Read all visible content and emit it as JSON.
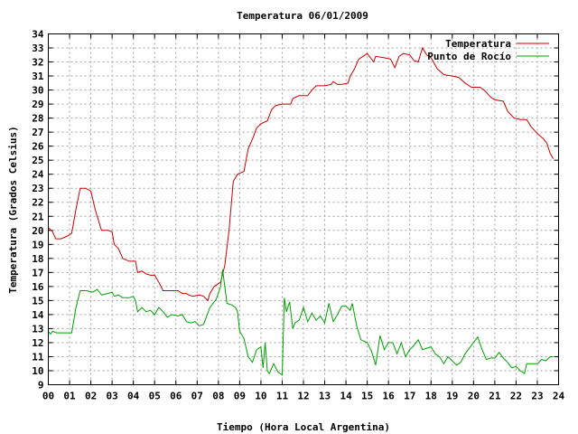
{
  "chart_data": {
    "type": "line",
    "title": "Temperatura 06/01/2009",
    "xlabel": "Tiempo (Hora Local Argentina)",
    "ylabel": "Temperatura (Grados Celsius)",
    "xlim": [
      0,
      24
    ],
    "ylim": [
      9,
      34
    ],
    "grid": true,
    "legend_position": "top-right",
    "x_tick_labels": [
      "00",
      "01",
      "02",
      "03",
      "04",
      "05",
      "06",
      "07",
      "08",
      "09",
      "10",
      "11",
      "12",
      "13",
      "14",
      "15",
      "16",
      "17",
      "18",
      "19",
      "20",
      "21",
      "22",
      "23",
      "24"
    ],
    "y_tick_labels": [
      "9",
      "10",
      "11",
      "12",
      "13",
      "14",
      "15",
      "16",
      "17",
      "18",
      "19",
      "20",
      "21",
      "22",
      "23",
      "24",
      "25",
      "26",
      "27",
      "28",
      "29",
      "30",
      "31",
      "32",
      "33",
      "34"
    ],
    "series": [
      {
        "name": "Temperatura",
        "color": "#cc0000",
        "points": [
          [
            0.0,
            20.2
          ],
          [
            0.2,
            19.9
          ],
          [
            0.35,
            19.4
          ],
          [
            0.6,
            19.4
          ],
          [
            0.9,
            19.6
          ],
          [
            1.1,
            19.8
          ],
          [
            1.3,
            21.5
          ],
          [
            1.5,
            23.0
          ],
          [
            1.75,
            23.0
          ],
          [
            2.0,
            22.8
          ],
          [
            2.2,
            21.5
          ],
          [
            2.5,
            20.0
          ],
          [
            2.8,
            20.0
          ],
          [
            3.0,
            19.9
          ],
          [
            3.1,
            19.0
          ],
          [
            3.3,
            18.7
          ],
          [
            3.5,
            18.0
          ],
          [
            3.8,
            17.8
          ],
          [
            4.1,
            17.8
          ],
          [
            4.2,
            17.0
          ],
          [
            4.4,
            17.1
          ],
          [
            4.6,
            16.9
          ],
          [
            4.8,
            16.8
          ],
          [
            5.0,
            16.8
          ],
          [
            5.2,
            16.3
          ],
          [
            5.4,
            15.7
          ],
          [
            5.8,
            15.7
          ],
          [
            6.1,
            15.7
          ],
          [
            6.3,
            15.5
          ],
          [
            6.5,
            15.5
          ],
          [
            6.6,
            15.4
          ],
          [
            6.8,
            15.3
          ],
          [
            7.1,
            15.4
          ],
          [
            7.3,
            15.3
          ],
          [
            7.5,
            15.0
          ],
          [
            7.6,
            15.5
          ],
          [
            7.8,
            16.0
          ],
          [
            8.1,
            16.3
          ],
          [
            8.3,
            17.5
          ],
          [
            8.5,
            20.0
          ],
          [
            8.7,
            23.5
          ],
          [
            8.9,
            24.0
          ],
          [
            9.2,
            24.2
          ],
          [
            9.4,
            25.8
          ],
          [
            9.6,
            26.5
          ],
          [
            9.8,
            27.3
          ],
          [
            10.0,
            27.6
          ],
          [
            10.3,
            27.8
          ],
          [
            10.5,
            28.6
          ],
          [
            10.7,
            28.9
          ],
          [
            11.0,
            29.0
          ],
          [
            11.4,
            29.0
          ],
          [
            11.5,
            29.4
          ],
          [
            11.8,
            29.6
          ],
          [
            12.2,
            29.6
          ],
          [
            12.4,
            30.0
          ],
          [
            12.6,
            30.3
          ],
          [
            13.0,
            30.3
          ],
          [
            13.3,
            30.4
          ],
          [
            13.4,
            30.6
          ],
          [
            13.6,
            30.4
          ],
          [
            13.8,
            30.4
          ],
          [
            14.1,
            30.5
          ],
          [
            14.2,
            31.0
          ],
          [
            14.4,
            31.5
          ],
          [
            14.6,
            32.2
          ],
          [
            14.9,
            32.5
          ],
          [
            15.0,
            32.6
          ],
          [
            15.3,
            32.0
          ],
          [
            15.4,
            32.4
          ],
          [
            15.8,
            32.3
          ],
          [
            16.1,
            32.2
          ],
          [
            16.3,
            31.6
          ],
          [
            16.5,
            32.4
          ],
          [
            16.7,
            32.6
          ],
          [
            17.0,
            32.5
          ],
          [
            17.2,
            32.1
          ],
          [
            17.4,
            32.0
          ],
          [
            17.6,
            33.0
          ],
          [
            17.8,
            32.5
          ],
          [
            18.0,
            32.3
          ],
          [
            18.3,
            31.5
          ],
          [
            18.6,
            31.1
          ],
          [
            19.0,
            31.0
          ],
          [
            19.3,
            30.9
          ],
          [
            19.6,
            30.5
          ],
          [
            19.9,
            30.2
          ],
          [
            20.3,
            30.2
          ],
          [
            20.5,
            30.0
          ],
          [
            20.8,
            29.5
          ],
          [
            21.0,
            29.3
          ],
          [
            21.4,
            29.2
          ],
          [
            21.6,
            28.5
          ],
          [
            21.9,
            28.0
          ],
          [
            22.2,
            27.9
          ],
          [
            22.5,
            27.9
          ],
          [
            22.7,
            27.4
          ],
          [
            23.0,
            26.9
          ],
          [
            23.3,
            26.5
          ],
          [
            23.45,
            26.2
          ],
          [
            23.6,
            25.5
          ],
          [
            23.75,
            25.1
          ]
        ]
      },
      {
        "name": "Punto de Rocío",
        "color": "#00a000",
        "points": [
          [
            0.0,
            12.8
          ],
          [
            0.1,
            12.6
          ],
          [
            0.2,
            12.8
          ],
          [
            0.4,
            12.7
          ],
          [
            0.6,
            12.7
          ],
          [
            1.1,
            12.7
          ],
          [
            1.3,
            14.5
          ],
          [
            1.5,
            15.7
          ],
          [
            1.8,
            15.7
          ],
          [
            2.1,
            15.6
          ],
          [
            2.3,
            15.8
          ],
          [
            2.5,
            15.4
          ],
          [
            2.8,
            15.5
          ],
          [
            3.0,
            15.6
          ],
          [
            3.1,
            15.3
          ],
          [
            3.3,
            15.4
          ],
          [
            3.5,
            15.2
          ],
          [
            3.8,
            15.2
          ],
          [
            4.0,
            15.3
          ],
          [
            4.1,
            15.0
          ],
          [
            4.2,
            14.2
          ],
          [
            4.4,
            14.5
          ],
          [
            4.6,
            14.2
          ],
          [
            4.8,
            14.3
          ],
          [
            5.0,
            14.0
          ],
          [
            5.2,
            14.5
          ],
          [
            5.4,
            14.2
          ],
          [
            5.6,
            13.8
          ],
          [
            5.8,
            14.0
          ],
          [
            6.1,
            13.9
          ],
          [
            6.3,
            14.0
          ],
          [
            6.5,
            13.5
          ],
          [
            6.7,
            13.4
          ],
          [
            6.9,
            13.5
          ],
          [
            7.1,
            13.2
          ],
          [
            7.3,
            13.3
          ],
          [
            7.6,
            14.5
          ],
          [
            7.9,
            15.1
          ],
          [
            8.1,
            16.0
          ],
          [
            8.2,
            17.2
          ],
          [
            8.3,
            16.0
          ],
          [
            8.4,
            14.8
          ],
          [
            8.6,
            14.7
          ],
          [
            8.8,
            14.5
          ],
          [
            8.9,
            14.2
          ],
          [
            9.0,
            12.8
          ],
          [
            9.2,
            12.3
          ],
          [
            9.4,
            11.0
          ],
          [
            9.6,
            10.6
          ],
          [
            9.8,
            11.5
          ],
          [
            10.0,
            11.7
          ],
          [
            10.1,
            10.2
          ],
          [
            10.2,
            12.0
          ],
          [
            10.3,
            10.0
          ],
          [
            10.4,
            9.8
          ],
          [
            10.6,
            10.5
          ],
          [
            10.8,
            9.9
          ],
          [
            11.0,
            9.7
          ],
          [
            11.1,
            15.2
          ],
          [
            11.2,
            14.2
          ],
          [
            11.35,
            14.9
          ],
          [
            11.5,
            13.0
          ],
          [
            11.6,
            13.4
          ],
          [
            11.8,
            13.6
          ],
          [
            12.0,
            14.5
          ],
          [
            12.2,
            13.5
          ],
          [
            12.4,
            14.1
          ],
          [
            12.6,
            13.6
          ],
          [
            12.8,
            13.9
          ],
          [
            13.0,
            13.4
          ],
          [
            13.2,
            14.8
          ],
          [
            13.4,
            13.5
          ],
          [
            13.6,
            14.0
          ],
          [
            13.8,
            14.6
          ],
          [
            14.0,
            14.6
          ],
          [
            14.2,
            14.3
          ],
          [
            14.3,
            14.8
          ],
          [
            14.5,
            13.2
          ],
          [
            14.7,
            12.2
          ],
          [
            15.0,
            12.0
          ],
          [
            15.2,
            11.4
          ],
          [
            15.4,
            10.4
          ],
          [
            15.6,
            12.5
          ],
          [
            15.8,
            11.5
          ],
          [
            16.0,
            12.0
          ],
          [
            16.2,
            12.0
          ],
          [
            16.4,
            11.2
          ],
          [
            16.6,
            12.0
          ],
          [
            16.8,
            11.0
          ],
          [
            17.0,
            11.5
          ],
          [
            17.2,
            11.8
          ],
          [
            17.4,
            12.2
          ],
          [
            17.6,
            11.5
          ],
          [
            17.8,
            11.6
          ],
          [
            18.0,
            11.7
          ],
          [
            18.2,
            11.2
          ],
          [
            18.4,
            11.0
          ],
          [
            18.6,
            10.5
          ],
          [
            18.8,
            11.0
          ],
          [
            19.0,
            10.7
          ],
          [
            19.2,
            10.4
          ],
          [
            19.4,
            10.6
          ],
          [
            19.6,
            11.2
          ],
          [
            19.8,
            11.6
          ],
          [
            20.0,
            12.0
          ],
          [
            20.2,
            12.4
          ],
          [
            20.4,
            11.5
          ],
          [
            20.6,
            10.8
          ],
          [
            20.8,
            10.9
          ],
          [
            21.0,
            10.9
          ],
          [
            21.2,
            11.3
          ],
          [
            21.4,
            10.9
          ],
          [
            21.6,
            10.6
          ],
          [
            21.8,
            10.2
          ],
          [
            22.0,
            10.3
          ],
          [
            22.2,
            10.0
          ],
          [
            22.4,
            9.8
          ],
          [
            22.5,
            10.5
          ],
          [
            22.7,
            10.5
          ],
          [
            23.0,
            10.5
          ],
          [
            23.2,
            10.8
          ],
          [
            23.4,
            10.7
          ],
          [
            23.6,
            11.0
          ],
          [
            23.75,
            11.0
          ]
        ]
      }
    ]
  }
}
